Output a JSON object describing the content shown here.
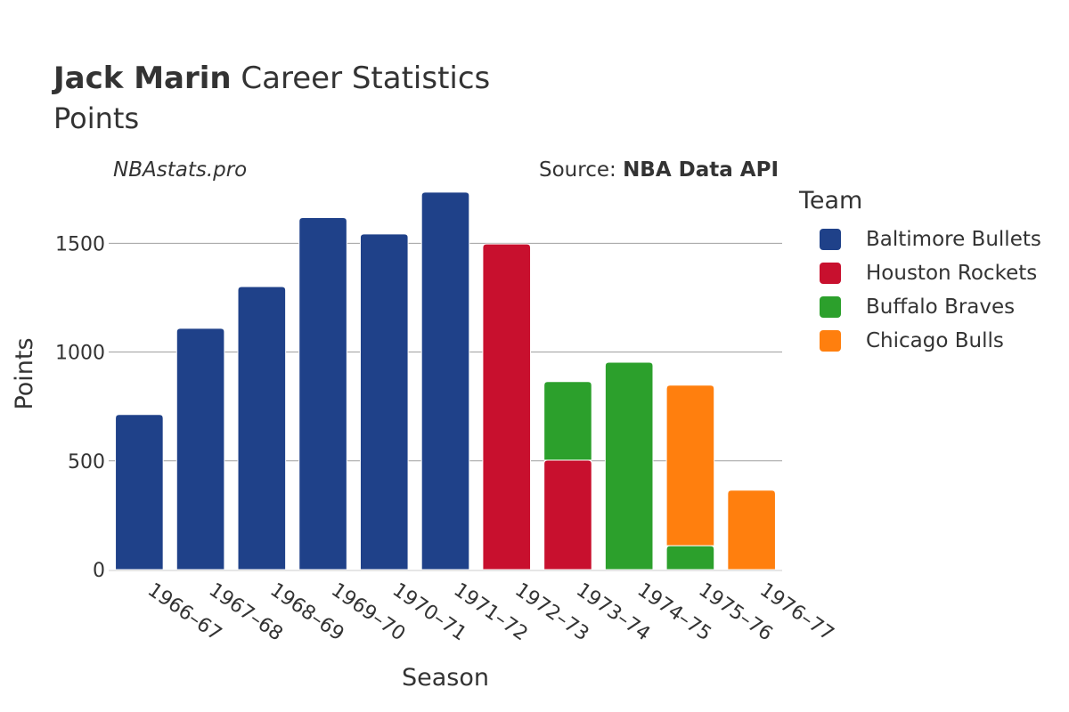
{
  "header": {
    "title_bold": "Jack Marin",
    "title_rest": "Career Statistics",
    "subtitle": "Points",
    "watermark": "NBAstats.pro",
    "source_label": "Source: ",
    "source_value": "NBA Data API"
  },
  "legend": {
    "title": "Team",
    "items": [
      {
        "label": "Baltimore Bullets",
        "color": "#1f4189"
      },
      {
        "label": "Houston Rockets",
        "color": "#c8102e"
      },
      {
        "label": "Buffalo Braves",
        "color": "#2ca02c"
      },
      {
        "label": "Chicago Bulls",
        "color": "#ff7f0e"
      }
    ]
  },
  "chart_data": {
    "type": "bar",
    "stacked": true,
    "xlabel": "Season",
    "ylabel": "Points",
    "ylim": [
      0,
      1800
    ],
    "yticks": [
      0,
      500,
      1000,
      1500
    ],
    "categories": [
      "1966–67",
      "1967–68",
      "1968–69",
      "1969–70",
      "1970–71",
      "1971–72",
      "1972–73",
      "1973–74",
      "1974–75",
      "1975–76",
      "1976–77"
    ],
    "series": [
      {
        "name": "Baltimore Bullets",
        "color": "#1f4189",
        "values": [
          713,
          1109,
          1301,
          1618,
          1543,
          1735,
          0,
          0,
          0,
          0,
          0
        ]
      },
      {
        "name": "Houston Rockets",
        "color": "#c8102e",
        "values": [
          0,
          0,
          0,
          0,
          0,
          0,
          1497,
          503,
          0,
          0,
          0
        ]
      },
      {
        "name": "Buffalo Braves",
        "color": "#2ca02c",
        "values": [
          0,
          0,
          0,
          0,
          0,
          0,
          0,
          361,
          953,
          110,
          0
        ]
      },
      {
        "name": "Chicago Bulls",
        "color": "#ff7f0e",
        "values": [
          0,
          0,
          0,
          0,
          0,
          0,
          0,
          0,
          0,
          738,
          365
        ]
      }
    ]
  }
}
